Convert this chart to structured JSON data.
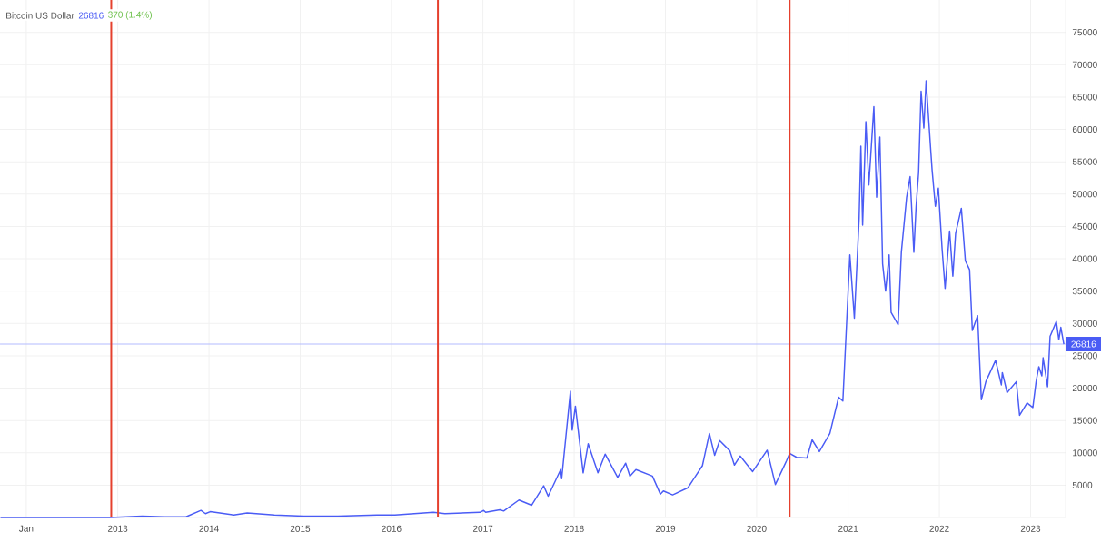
{
  "chart_data": {
    "type": "line",
    "title": "Bitcoin US Dollar",
    "annotations": [
      "26816",
      "370 (1.4%)"
    ],
    "color": "#4a5cf5",
    "x": [
      "2011-09-20",
      "2012-06-01",
      "2012-12-01",
      "2013-04-09",
      "2013-07-05",
      "2013-10-01",
      "2013-11-30",
      "2013-12-18",
      "2014-01-06",
      "2014-04-10",
      "2014-06-03",
      "2014-09-20",
      "2015-01-14",
      "2015-06-01",
      "2015-11-04",
      "2016-01-15",
      "2016-06-17",
      "2016-08-02",
      "2016-12-20",
      "2017-01-04",
      "2017-01-12",
      "2017-03-10",
      "2017-03-25",
      "2017-05-25",
      "2017-07-15",
      "2017-09-01",
      "2017-09-19",
      "2017-11-08",
      "2017-11-12",
      "2017-12-17",
      "2017-12-24",
      "2018-01-06",
      "2018-02-06",
      "2018-02-26",
      "2018-04-06",
      "2018-05-05",
      "2018-06-24",
      "2018-07-26",
      "2018-08-12",
      "2018-09-05",
      "2018-11-10",
      "2018-12-12",
      "2018-12-24",
      "2019-01-30",
      "2019-04-01",
      "2019-05-29",
      "2019-06-26",
      "2019-07-17",
      "2019-08-06",
      "2019-09-16",
      "2019-10-04",
      "2019-10-27",
      "2019-12-16",
      "2020-02-12",
      "2020-03-16",
      "2020-04-30",
      "2020-05-12",
      "2020-06-09",
      "2020-07-20",
      "2020-08-10",
      "2020-09-08",
      "2020-10-20",
      "2020-11-24",
      "2020-12-11",
      "2021-01-08",
      "2021-01-26",
      "2021-02-14",
      "2021-02-21",
      "2021-02-28",
      "2021-03-13",
      "2021-03-25",
      "2021-04-14",
      "2021-04-25",
      "2021-05-08",
      "2021-05-19",
      "2021-05-31",
      "2021-06-14",
      "2021-06-22",
      "2021-07-20",
      "2021-08-02",
      "2021-08-23",
      "2021-09-06",
      "2021-09-21",
      "2021-09-30",
      "2021-10-10",
      "2021-10-20",
      "2021-10-31",
      "2021-11-09",
      "2021-11-28",
      "2021-12-03",
      "2021-12-16",
      "2021-12-28",
      "2022-01-12",
      "2022-01-24",
      "2022-02-11",
      "2022-02-24",
      "2022-03-07",
      "2022-03-30",
      "2022-04-15",
      "2022-05-02",
      "2022-05-13",
      "2022-06-03",
      "2022-06-18",
      "2022-07-06",
      "2022-08-14",
      "2022-09-06",
      "2022-09-10",
      "2022-09-29",
      "2022-11-05",
      "2022-11-18",
      "2022-12-18",
      "2023-01-10",
      "2023-01-23",
      "2023-02-03",
      "2023-02-15",
      "2023-02-20",
      "2023-03-10",
      "2023-03-20",
      "2023-04-14",
      "2023-04-24",
      "2023-05-02",
      "2023-05-14"
    ],
    "values": [
      0,
      0,
      0,
      200,
      100,
      100,
      1100,
      600,
      900,
      400,
      700,
      400,
      200,
      200,
      400,
      400,
      800,
      600,
      800,
      1100,
      800,
      1200,
      1000,
      2700,
      1900,
      4900,
      3300,
      7400,
      6000,
      19500,
      13500,
      17200,
      6900,
      11400,
      6900,
      9800,
      6200,
      8400,
      6400,
      7400,
      6400,
      3600,
      4100,
      3500,
      4600,
      8000,
      13000,
      9600,
      11900,
      10300,
      8100,
      9500,
      7100,
      10400,
      5100,
      8800,
      9900,
      9300,
      9200,
      12000,
      10200,
      13000,
      18600,
      18000,
      40600,
      30800,
      46200,
      57400,
      45200,
      61200,
      51400,
      63500,
      49500,
      58800,
      39200,
      35000,
      40600,
      31700,
      29800,
      41000,
      49500,
      52700,
      41000,
      48100,
      53300,
      65900,
      60200,
      67500,
      56500,
      53700,
      48100,
      50900,
      41500,
      35400,
      44300,
      37300,
      43900,
      47800,
      39700,
      38300,
      28900,
      31200,
      18200,
      21000,
      24300,
      20500,
      22400,
      19300,
      21000,
      15800,
      17700,
      17000,
      21000,
      23300,
      21900,
      24700,
      20200,
      28000,
      30300,
      27500,
      29400,
      26800
    ],
    "xlim": [
      "2011-09-18",
      "2023-05-21"
    ],
    "xticks": [
      {
        "value": "2012-01-01",
        "label": "Jan"
      },
      {
        "value": "2013-01-01",
        "label": "2013"
      },
      {
        "value": "2014-01-01",
        "label": "2014"
      },
      {
        "value": "2015-01-01",
        "label": "2015"
      },
      {
        "value": "2016-01-01",
        "label": "2016"
      },
      {
        "value": "2017-01-01",
        "label": "2017"
      },
      {
        "value": "2018-01-01",
        "label": "2018"
      },
      {
        "value": "2019-01-01",
        "label": "2019"
      },
      {
        "value": "2020-01-01",
        "label": "2020"
      },
      {
        "value": "2021-01-01",
        "label": "2021"
      },
      {
        "value": "2022-01-01",
        "label": "2022"
      },
      {
        "value": "2023-01-01",
        "label": "2023"
      }
    ],
    "ylim": [
      0,
      80000
    ],
    "yticks": [
      5000,
      10000,
      15000,
      20000,
      25000,
      30000,
      35000,
      40000,
      45000,
      50000,
      55000,
      60000,
      65000,
      70000,
      75000
    ],
    "grid": true,
    "ref_lines": [
      {
        "axis": "y",
        "value": 26816,
        "label": "26816",
        "color": "#b4bcff"
      },
      {
        "axis": "x",
        "value": "2012-12-06",
        "color": "#e5402d"
      },
      {
        "axis": "x",
        "value": "2016-07-05",
        "color": "#e5402d"
      },
      {
        "axis": "x",
        "value": "2020-05-12",
        "color": "#e5402d"
      }
    ]
  }
}
